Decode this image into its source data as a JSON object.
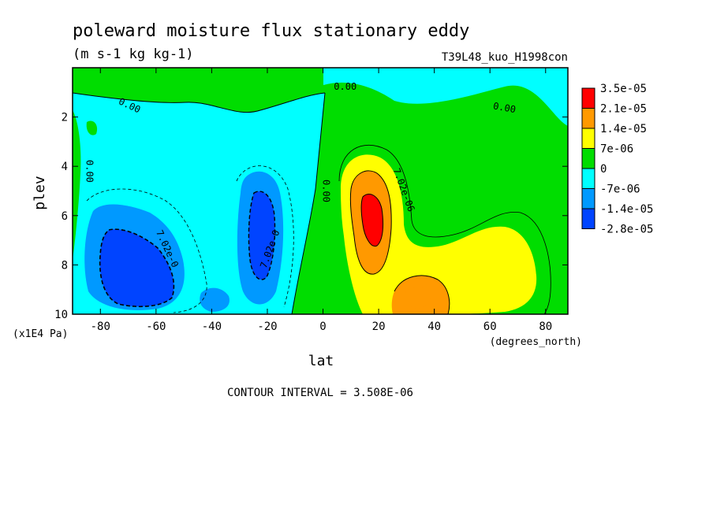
{
  "chart_data": {
    "type": "heatmap",
    "title": "poleward moisture flux stationary eddy",
    "units": "(m s-1 kg kg-1)",
    "run_label": "T39L48_kuo_H1998con",
    "xlabel": "lat",
    "x_units": "(degrees_north)",
    "ylabel": "plev",
    "y_units": "(x1E4 Pa)",
    "x_range": [
      -90,
      88
    ],
    "y_range": [
      10,
      0
    ],
    "x_ticks": [
      -80,
      -60,
      -40,
      -20,
      0,
      20,
      40,
      60,
      80
    ],
    "y_ticks": [
      2,
      4,
      6,
      8,
      10
    ],
    "x_tick_labels": [
      "-80",
      "-60",
      "-40",
      "-20",
      "0",
      "20",
      "40",
      "60",
      "80"
    ],
    "y_tick_labels": [
      "2",
      "4",
      "6",
      "8",
      "10"
    ],
    "colorbar": {
      "colors": [
        "#ff0000",
        "#ff9900",
        "#ffff00",
        "#00dd00",
        "#00ffff",
        "#0099ff",
        "#0044ff"
      ],
      "labels": [
        "3.5e-05",
        "2.1e-05",
        "1.4e-05",
        "7e-06",
        "0",
        "-7e-06",
        "-1.4e-05",
        "-2.8e-05"
      ]
    },
    "contour_labels": [
      {
        "text": "0.00",
        "x": 8,
        "y": 0.9,
        "rotate": 0
      },
      {
        "text": "0.00",
        "x": -70,
        "y": 1.65,
        "rotate": 25
      },
      {
        "text": "0.00",
        "x": 65,
        "y": 1.75,
        "rotate": 10
      },
      {
        "text": "0.00",
        "x": -85,
        "y": 4.2,
        "rotate": 90
      },
      {
        "text": "0.00",
        "x": 0,
        "y": 5.0,
        "rotate": 90
      },
      {
        "text": "7.02e-06",
        "x": 28,
        "y": 5.0,
        "rotate": 70
      },
      {
        "text": "7.02e-0",
        "x": -57,
        "y": 7.4,
        "rotate": 65
      },
      {
        "text": "7.02e-0",
        "x": -18,
        "y": 7.4,
        "rotate": -70
      }
    ],
    "contour_interval_text": "CONTOUR INTERVAL = 3.508E-06",
    "grid": false
  }
}
